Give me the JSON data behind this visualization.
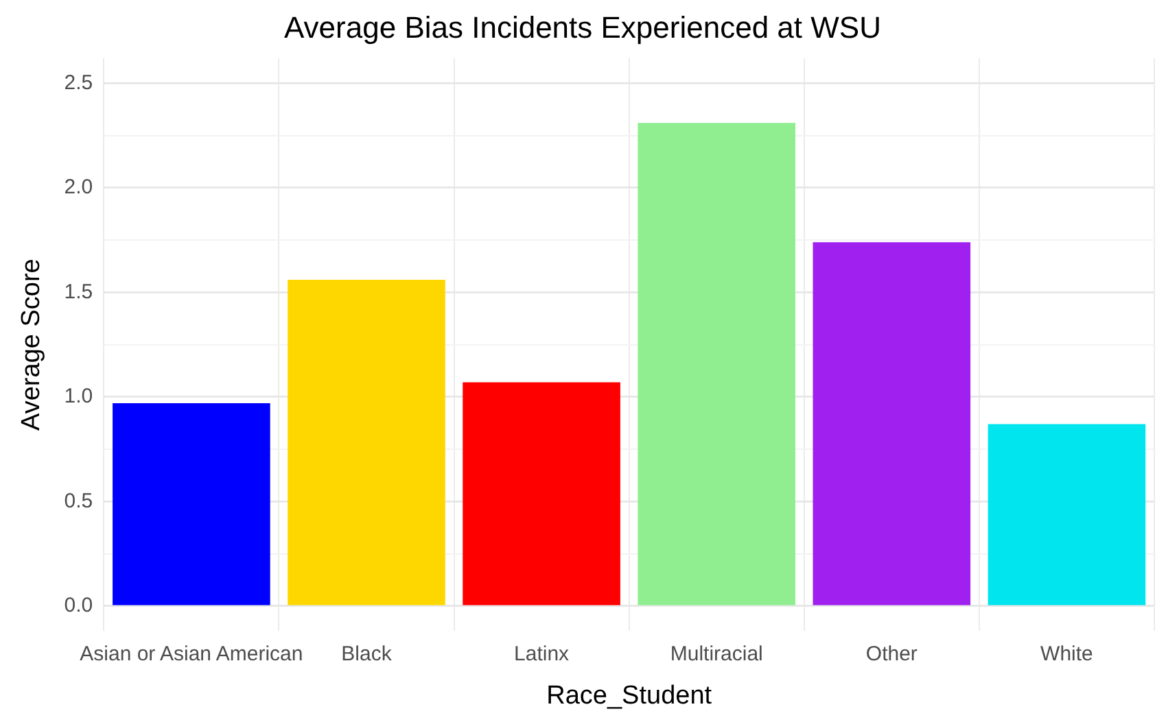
{
  "chart_data": {
    "type": "bar",
    "title": "Average Bias Incidents Experienced at WSU",
    "xlabel": "Race_Student",
    "ylabel": "Average Score",
    "categories": [
      "Asian or Asian American",
      "Black",
      "Latinx",
      "Multiracial",
      "Other",
      "White"
    ],
    "values": [
      0.97,
      1.56,
      1.07,
      2.31,
      1.74,
      0.87
    ],
    "colors": [
      "#0000ff",
      "#ffd700",
      "#ff0000",
      "#90ee90",
      "#a020f0",
      "#00e5ee"
    ],
    "ylim": [
      -0.12,
      2.62
    ],
    "yticks": [
      {
        "value": 0,
        "label": "0.0"
      },
      {
        "value": 0.25,
        "label": null
      },
      {
        "value": 0.5,
        "label": "0.5"
      },
      {
        "value": 0.75,
        "label": null
      },
      {
        "value": 1,
        "label": "1.0"
      },
      {
        "value": 1.25,
        "label": null
      },
      {
        "value": 1.5,
        "label": "1.5"
      },
      {
        "value": 1.75,
        "label": null
      },
      {
        "value": 2,
        "label": "2.0"
      },
      {
        "value": 2.25,
        "label": null
      },
      {
        "value": 2.5,
        "label": "2.5"
      }
    ],
    "grid": true,
    "legend": false
  }
}
